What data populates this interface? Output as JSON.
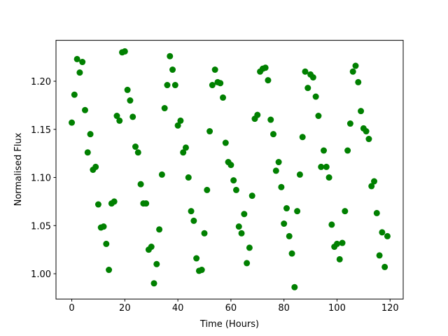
{
  "chart_data": {
    "type": "scatter",
    "xlabel": "Time (Hours)",
    "ylabel": "Normalised Flux",
    "color": "#008000",
    "x": [
      0,
      1,
      2,
      3,
      4,
      5,
      6,
      7,
      8,
      9,
      10,
      11,
      12,
      13,
      14,
      15,
      16,
      17,
      18,
      19,
      20,
      21,
      22,
      23,
      24,
      25,
      26,
      27,
      28,
      29,
      30,
      31,
      32,
      33,
      34,
      35,
      36,
      37,
      38,
      39,
      40,
      41,
      42,
      43,
      44,
      45,
      46,
      47,
      48,
      49,
      50,
      51,
      52,
      53,
      54,
      55,
      56,
      57,
      58,
      59,
      60,
      61,
      62,
      63,
      64,
      65,
      66,
      67,
      68,
      69,
      70,
      71,
      72,
      73,
      74,
      75,
      76,
      77,
      78,
      79,
      80,
      81,
      82,
      83,
      84,
      85,
      86,
      87,
      88,
      89,
      90,
      91,
      92,
      93,
      94,
      95,
      96,
      97,
      98,
      99,
      100,
      101,
      102,
      103,
      104,
      105,
      106,
      107,
      108,
      109,
      110,
      111,
      112,
      113,
      114,
      115,
      116,
      117,
      118,
      119
    ],
    "y": [
      1.157,
      1.186,
      1.223,
      1.209,
      1.22,
      1.17,
      1.126,
      1.145,
      1.108,
      1.111,
      1.072,
      1.048,
      1.049,
      1.031,
      1.004,
      1.073,
      1.075,
      1.164,
      1.159,
      1.23,
      1.231,
      1.191,
      1.18,
      1.163,
      1.132,
      1.126,
      1.093,
      1.073,
      1.073,
      1.025,
      1.028,
      0.99,
      1.01,
      1.046,
      1.103,
      1.172,
      1.196,
      1.226,
      1.212,
      1.196,
      1.154,
      1.159,
      1.126,
      1.131,
      1.1,
      1.065,
      1.055,
      1.016,
      1.003,
      1.004,
      1.042,
      1.087,
      1.148,
      1.196,
      1.212,
      1.199,
      1.198,
      1.183,
      1.136,
      1.116,
      1.113,
      1.097,
      1.087,
      1.049,
      1.042,
      1.062,
      1.011,
      1.027,
      1.081,
      1.161,
      1.165,
      1.21,
      1.213,
      1.214,
      1.201,
      1.16,
      1.145,
      1.107,
      1.116,
      1.09,
      1.052,
      1.068,
      1.039,
      1.021,
      0.986,
      1.065,
      1.103,
      1.142,
      1.21,
      1.193,
      1.207,
      1.204,
      1.184,
      1.164,
      1.111,
      1.128,
      1.111,
      1.1,
      1.051,
      1.028,
      1.031,
      1.015,
      1.032,
      1.065,
      1.128,
      1.156,
      1.21,
      1.216,
      1.199,
      1.169,
      1.151,
      1.148,
      1.14,
      1.091,
      1.096,
      1.063,
      1.019,
      1.043,
      1.007,
      1.039
    ],
    "xlim": [
      -5.95,
      124.95
    ],
    "ylim": [
      0.9737,
      1.2425
    ],
    "xticks": [
      0,
      20,
      40,
      60,
      80,
      100,
      120
    ],
    "yticks": [
      {
        "value": 1.0,
        "label": "1.00"
      },
      {
        "value": 1.05,
        "label": "1.05"
      },
      {
        "value": 1.1,
        "label": "1.10"
      },
      {
        "value": 1.15,
        "label": "1.15"
      },
      {
        "value": 1.2,
        "label": "1.20"
      }
    ]
  }
}
